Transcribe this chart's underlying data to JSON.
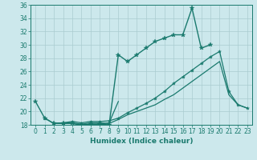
{
  "xlabel": "Humidex (Indice chaleur)",
  "background_color": "#cce8ec",
  "grid_color": "#aaccd0",
  "line_color": "#1a7a6e",
  "xlim": [
    -0.5,
    23.5
  ],
  "ylim": [
    18,
    36
  ],
  "x": [
    0,
    1,
    2,
    3,
    4,
    5,
    6,
    7,
    8,
    9,
    10,
    11,
    12,
    13,
    14,
    15,
    16,
    17,
    18,
    19,
    20,
    21,
    22,
    23
  ],
  "line_top": [
    21.5,
    19.0,
    18.2,
    18.2,
    18.2,
    18.0,
    18.1,
    18.1,
    18.0,
    28.5,
    27.5,
    28.5,
    29.5,
    30.5,
    31.0,
    31.5,
    31.5,
    35.5,
    29.5,
    30.0,
    null,
    null,
    null,
    null
  ],
  "line_mid": [
    null,
    null,
    18.2,
    18.2,
    18.2,
    18.0,
    18.1,
    18.1,
    18.3,
    21.5,
    null,
    null,
    null,
    null,
    null,
    null,
    null,
    null,
    null,
    null,
    null,
    null,
    null,
    null
  ],
  "line_diag1": [
    null,
    19.0,
    18.2,
    18.3,
    18.5,
    18.3,
    18.5,
    18.5,
    18.6,
    19.0,
    19.8,
    20.5,
    21.2,
    22.0,
    23.0,
    24.2,
    25.2,
    26.2,
    27.2,
    28.2,
    29.0,
    23.0,
    21.0,
    20.5
  ],
  "line_diag2": [
    null,
    null,
    18.2,
    18.3,
    18.3,
    18.1,
    18.3,
    18.3,
    18.2,
    18.8,
    19.5,
    20.0,
    20.5,
    21.0,
    21.8,
    22.5,
    23.5,
    24.5,
    25.5,
    26.5,
    27.5,
    22.5,
    21.0,
    20.5
  ],
  "ytick_values": [
    18,
    20,
    22,
    24,
    26,
    28,
    30,
    32,
    34,
    36
  ]
}
